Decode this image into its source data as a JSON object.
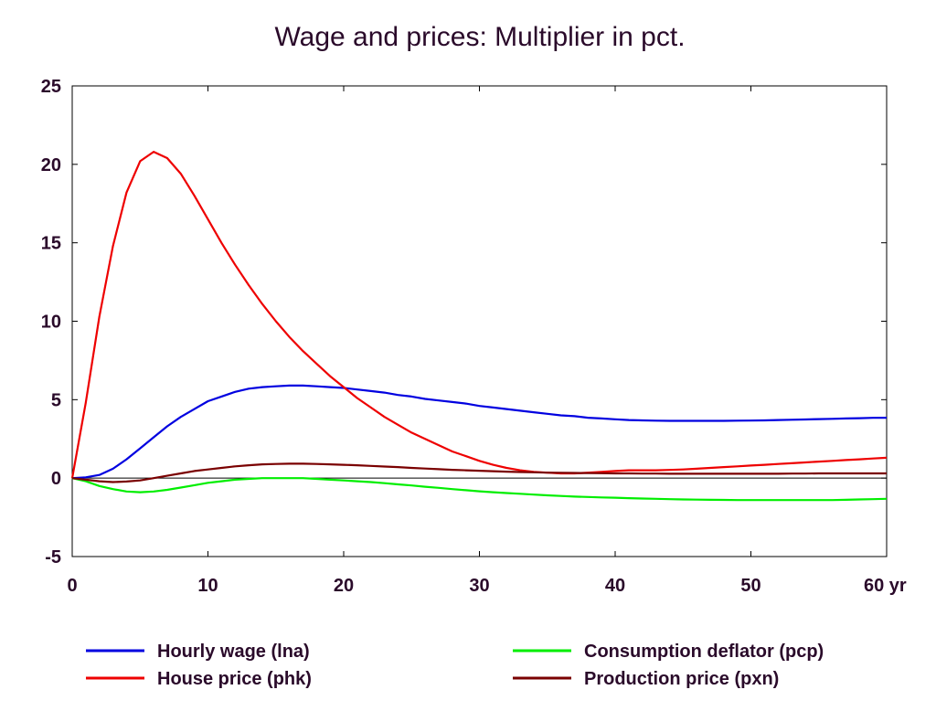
{
  "chart_data": {
    "type": "line",
    "title": "Wage and prices: Multiplier in pct.",
    "x_unit_label": "yr",
    "xlim": [
      0,
      60
    ],
    "ylim": [
      -5,
      25
    ],
    "x_ticks": [
      0,
      10,
      20,
      30,
      40,
      50,
      60
    ],
    "x_tick_labels": [
      "0",
      "10",
      "20",
      "30",
      "40",
      "50",
      "60 yr"
    ],
    "y_ticks": [
      -5,
      0,
      5,
      10,
      15,
      20,
      25
    ],
    "y_tick_labels": [
      "-5",
      "0",
      "5",
      "10",
      "15",
      "20",
      "25"
    ],
    "zero_line": true,
    "grid": false,
    "legend_position": "bottom",
    "x": [
      0,
      1,
      2,
      3,
      4,
      5,
      6,
      7,
      8,
      9,
      10,
      11,
      12,
      13,
      14,
      15,
      16,
      17,
      18,
      19,
      20,
      21,
      22,
      23,
      24,
      25,
      26,
      27,
      28,
      29,
      30,
      31,
      32,
      33,
      34,
      35,
      36,
      37,
      38,
      39,
      40,
      41,
      42,
      43,
      44,
      45,
      46,
      47,
      48,
      49,
      50,
      51,
      52,
      53,
      54,
      55,
      56,
      57,
      58,
      59,
      60
    ],
    "series": [
      {
        "name": "Hourly wage (lna)",
        "color": "#0000e0",
        "values": [
          0,
          0.05,
          0.2,
          0.6,
          1.2,
          1.9,
          2.6,
          3.3,
          3.9,
          4.4,
          4.9,
          5.2,
          5.5,
          5.7,
          5.8,
          5.85,
          5.9,
          5.9,
          5.85,
          5.8,
          5.75,
          5.65,
          5.55,
          5.45,
          5.3,
          5.2,
          5.05,
          4.95,
          4.85,
          4.75,
          4.6,
          4.5,
          4.4,
          4.3,
          4.2,
          4.1,
          4.0,
          3.95,
          3.85,
          3.8,
          3.75,
          3.7,
          3.68,
          3.66,
          3.65,
          3.65,
          3.65,
          3.65,
          3.65,
          3.66,
          3.67,
          3.68,
          3.7,
          3.72,
          3.74,
          3.76,
          3.78,
          3.8,
          3.82,
          3.84,
          3.85
        ]
      },
      {
        "name": "House price (phk)",
        "color": "#ee0000",
        "values": [
          0,
          4.8,
          10.3,
          14.8,
          18.2,
          20.2,
          20.8,
          20.4,
          19.4,
          18.0,
          16.5,
          15.0,
          13.6,
          12.3,
          11.1,
          10.0,
          9.0,
          8.1,
          7.3,
          6.5,
          5.8,
          5.1,
          4.5,
          3.9,
          3.4,
          2.9,
          2.5,
          2.1,
          1.7,
          1.4,
          1.1,
          0.85,
          0.65,
          0.5,
          0.4,
          0.35,
          0.3,
          0.3,
          0.35,
          0.4,
          0.45,
          0.5,
          0.5,
          0.5,
          0.52,
          0.55,
          0.6,
          0.65,
          0.7,
          0.75,
          0.8,
          0.85,
          0.9,
          0.95,
          1.0,
          1.05,
          1.1,
          1.15,
          1.2,
          1.25,
          1.3
        ]
      },
      {
        "name": "Consumption deflator (pcp)",
        "color": "#00ee00",
        "values": [
          0,
          -0.2,
          -0.5,
          -0.7,
          -0.85,
          -0.9,
          -0.85,
          -0.75,
          -0.6,
          -0.45,
          -0.3,
          -0.2,
          -0.1,
          -0.05,
          0,
          0,
          0,
          0,
          -0.05,
          -0.1,
          -0.15,
          -0.2,
          -0.25,
          -0.32,
          -0.4,
          -0.47,
          -0.55,
          -0.62,
          -0.7,
          -0.77,
          -0.84,
          -0.9,
          -0.95,
          -1.0,
          -1.05,
          -1.1,
          -1.14,
          -1.18,
          -1.2,
          -1.23,
          -1.25,
          -1.28,
          -1.3,
          -1.32,
          -1.34,
          -1.36,
          -1.37,
          -1.38,
          -1.39,
          -1.4,
          -1.4,
          -1.4,
          -1.4,
          -1.4,
          -1.4,
          -1.4,
          -1.4,
          -1.38,
          -1.36,
          -1.34,
          -1.32
        ]
      },
      {
        "name": "Production price (pxn)",
        "color": "#7a0000",
        "values": [
          0,
          -0.1,
          -0.2,
          -0.25,
          -0.22,
          -0.15,
          0,
          0.15,
          0.3,
          0.45,
          0.55,
          0.65,
          0.75,
          0.82,
          0.88,
          0.9,
          0.92,
          0.92,
          0.9,
          0.88,
          0.85,
          0.82,
          0.78,
          0.74,
          0.7,
          0.65,
          0.61,
          0.57,
          0.53,
          0.5,
          0.47,
          0.44,
          0.41,
          0.39,
          0.37,
          0.35,
          0.34,
          0.33,
          0.32,
          0.31,
          0.3,
          0.3,
          0.29,
          0.29,
          0.28,
          0.28,
          0.28,
          0.28,
          0.28,
          0.28,
          0.28,
          0.28,
          0.28,
          0.29,
          0.29,
          0.3,
          0.3,
          0.3,
          0.3,
          0.3,
          0.3
        ]
      }
    ]
  }
}
